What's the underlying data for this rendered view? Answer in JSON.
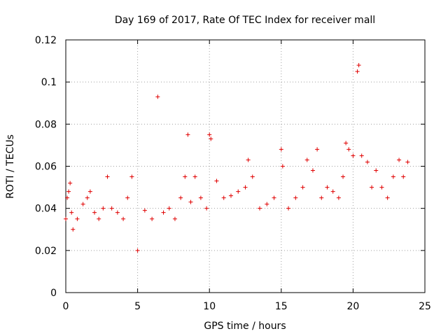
{
  "chart_data": {
    "type": "scatter",
    "title": "Day 169 of 2017, Rate Of TEC Index for receiver mall",
    "xlabel": "GPS time / hours",
    "ylabel": "ROTI / TECUs",
    "xlim": [
      0,
      25
    ],
    "ylim": [
      0,
      0.12
    ],
    "x_ticks": [
      "0",
      "5",
      "10",
      "15",
      "20",
      "25"
    ],
    "y_ticks": [
      "0",
      "0.02",
      "0.04",
      "0.06",
      "0.08",
      "0.1",
      "0.12"
    ],
    "grid": true,
    "legend": "none",
    "marker": "plus",
    "color": "#e00000",
    "series": [
      {
        "x": [
          0.0,
          0.1,
          0.2,
          0.3,
          0.4,
          0.5,
          0.8,
          1.2,
          1.5,
          1.7,
          2.0,
          2.3,
          2.6,
          2.9,
          3.2,
          3.6,
          4.0,
          4.3,
          4.6,
          5.0,
          5.5,
          6.0,
          6.4,
          6.8,
          7.2,
          7.6,
          8.0,
          8.3,
          8.5,
          8.7,
          9.0,
          9.4,
          9.8,
          10.0,
          10.1,
          10.5,
          11.0,
          11.5,
          12.0,
          12.5,
          12.7,
          13.0,
          13.5,
          14.0,
          14.5,
          15.0,
          15.1,
          15.5,
          16.0,
          16.5,
          16.8,
          17.2,
          17.5,
          17.8,
          18.2,
          18.6,
          19.0,
          19.3,
          19.5,
          19.7,
          20.0,
          20.3,
          20.4,
          20.6,
          21.0,
          21.3,
          21.6,
          22.0,
          22.4,
          22.8,
          23.2,
          23.5,
          23.8
        ],
        "y": [
          0.035,
          0.045,
          0.048,
          0.052,
          0.038,
          0.03,
          0.035,
          0.042,
          0.045,
          0.048,
          0.038,
          0.035,
          0.04,
          0.055,
          0.04,
          0.038,
          0.035,
          0.045,
          0.055,
          0.02,
          0.039,
          0.035,
          0.093,
          0.038,
          0.04,
          0.035,
          0.045,
          0.055,
          0.075,
          0.043,
          0.055,
          0.045,
          0.04,
          0.075,
          0.073,
          0.053,
          0.045,
          0.046,
          0.048,
          0.05,
          0.063,
          0.055,
          0.04,
          0.042,
          0.045,
          0.068,
          0.06,
          0.04,
          0.045,
          0.05,
          0.063,
          0.058,
          0.068,
          0.045,
          0.05,
          0.048,
          0.045,
          0.055,
          0.071,
          0.068,
          0.065,
          0.105,
          0.108,
          0.065,
          0.062,
          0.05,
          0.058,
          0.05,
          0.045,
          0.055,
          0.063,
          0.055,
          0.062
        ]
      }
    ]
  }
}
